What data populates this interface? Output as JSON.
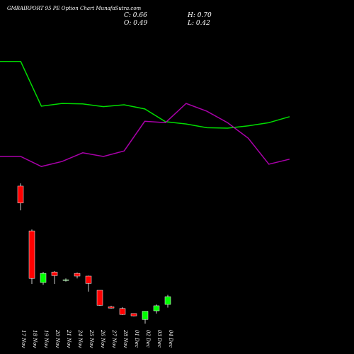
{
  "header": {
    "title": "GMRAIRPORT 95 PE Option Chart MunafaSutra.com",
    "close": "C: 0.66",
    "high": "H: 0.70",
    "open": "O: 0.49",
    "low": "L: 0.42"
  },
  "chart_data": [
    {
      "type": "candlestick",
      "categories": [
        "17 Nov",
        "18 Nov",
        "19 Nov",
        "20 Nov",
        "21 Nov",
        "24 Nov",
        "25 Nov",
        "26 Nov",
        "27 Nov",
        "28 Nov",
        "01 Dec",
        "02 Dec",
        "03 Dec",
        "04 Dec"
      ],
      "open": [
        3.08,
        2.1,
        0.97,
        1.2,
        1.02,
        1.17,
        1.11,
        0.8,
        0.44,
        0.4,
        0.29,
        0.16,
        0.35,
        0.49
      ],
      "high": [
        3.14,
        2.13,
        1.2,
        1.22,
        1.06,
        1.19,
        1.12,
        0.8,
        0.46,
        0.43,
        0.29,
        0.34,
        0.49,
        0.7
      ],
      "low": [
        2.55,
        0.94,
        0.92,
        0.94,
        0.99,
        1.06,
        0.77,
        0.46,
        0.4,
        0.26,
        0.23,
        0.07,
        0.29,
        0.42
      ],
      "close": [
        2.71,
        1.06,
        1.17,
        1.12,
        1.03,
        1.11,
        0.95,
        0.47,
        0.41,
        0.27,
        0.24,
        0.34,
        0.46,
        0.66
      ],
      "up_color": "#00ff00",
      "down_color": "#ff0000",
      "ylim": [
        0,
        7
      ]
    },
    {
      "type": "line",
      "x": [
        0,
        1,
        2,
        3,
        4,
        5,
        6,
        7,
        8,
        9,
        10,
        11,
        12,
        13,
        14
      ],
      "xlim": [
        0,
        14
      ],
      "ylim": [
        0,
        7
      ],
      "series": [
        {
          "color": "#00dd00",
          "values": [
            5.81,
            5.81,
            4.83,
            4.89,
            4.88,
            4.82,
            4.86,
            4.77,
            4.49,
            4.44,
            4.36,
            4.35,
            4.4,
            4.47,
            4.6
          ]
        },
        {
          "color": "#aa00aa",
          "values": [
            3.73,
            3.73,
            3.51,
            3.62,
            3.81,
            3.73,
            3.85,
            4.5,
            4.47,
            4.89,
            4.72,
            4.47,
            4.13,
            3.56,
            3.67
          ]
        }
      ]
    }
  ]
}
